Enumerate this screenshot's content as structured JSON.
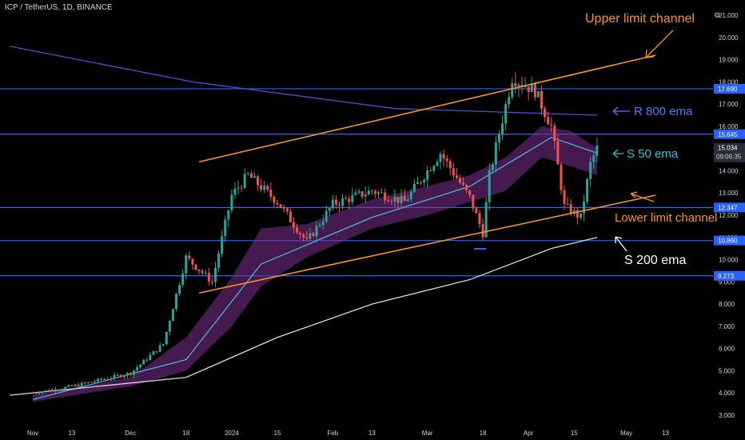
{
  "header": {
    "symbol_label": "ICP / TetherUS, 1D, BINANCE"
  },
  "chart_data": {
    "type": "candlestick",
    "title": "ICP / TetherUS, 1D, BINANCE",
    "y_axis": {
      "ticks": [
        "21.000",
        "20.000",
        "19.000",
        "18.000",
        "17.000",
        "16.000",
        "15.000",
        "14.000",
        "13.000",
        "12.000",
        "11.000",
        "10.000",
        "9.000",
        "8.000",
        "7.000",
        "6.000",
        "5.000",
        "4.000",
        "3.000"
      ],
      "range": [
        3,
        21
      ]
    },
    "x_axis": {
      "ticks": [
        "Nov",
        "13",
        "Dec",
        "18",
        "2024",
        "15",
        "Feb",
        "13",
        "Mar",
        "18",
        "Apr",
        "15",
        "May",
        "13"
      ]
    },
    "horizontal_levels": [
      {
        "label": "17.690",
        "value": 17.69
      },
      {
        "label": "15.645",
        "value": 15.645
      },
      {
        "label": "12.347",
        "value": 12.347
      },
      {
        "label": "10.860",
        "value": 10.86
      },
      {
        "label": "9.273",
        "value": 9.273
      }
    ],
    "current_price": {
      "label": "15.034",
      "value": 15.034,
      "countdown": "09:06:35"
    },
    "annotations": [
      {
        "text": "Upper limit channel",
        "color": "#f7941d"
      },
      {
        "text": "R 800 ema",
        "color": "#4f7bff"
      },
      {
        "text": "S 50 ema",
        "color": "#26c6da"
      },
      {
        "text": "Lower limit channel",
        "color": "#f7941d"
      },
      {
        "text": "S 200 ema",
        "color": "#ffffff"
      }
    ],
    "channel_lines": [
      {
        "name": "upper",
        "from": [
          "Dec 22",
          14.4
        ],
        "to": [
          "May 10",
          19.2
        ]
      },
      {
        "name": "lower",
        "from": [
          "Dec 22",
          8.5
        ],
        "to": [
          "May 10",
          12.9
        ]
      }
    ],
    "ohlc_sampled": [
      {
        "date": "Nov 1",
        "close": 4.0
      },
      {
        "date": "Nov 13",
        "close": 4.3
      },
      {
        "date": "Dec 1",
        "close": 4.9
      },
      {
        "date": "Dec 11",
        "close": 6.2
      },
      {
        "date": "Dec 18",
        "close": 10.1
      },
      {
        "date": "Dec 26",
        "close": 9.0
      },
      {
        "date": "Jan 1",
        "close": 12.9
      },
      {
        "date": "Jan 6",
        "close": 13.8
      },
      {
        "date": "Jan 15",
        "close": 12.6
      },
      {
        "date": "Jan 24",
        "close": 10.8
      },
      {
        "date": "Feb 1",
        "close": 12.5
      },
      {
        "date": "Feb 13",
        "close": 13.1
      },
      {
        "date": "Feb 23",
        "close": 12.6
      },
      {
        "date": "Mar 1",
        "close": 14.0
      },
      {
        "date": "Mar 5",
        "close": 14.8
      },
      {
        "date": "Mar 14",
        "close": 12.8
      },
      {
        "date": "Mar 18",
        "close": 11.2
      },
      {
        "date": "Mar 20",
        "close": 13.8
      },
      {
        "date": "Mar 27",
        "close": 18.2
      },
      {
        "date": "Apr 3",
        "close": 17.6
      },
      {
        "date": "Apr 8",
        "close": 16.0
      },
      {
        "date": "Apr 12",
        "close": 12.4
      },
      {
        "date": "Apr 17",
        "close": 11.9
      },
      {
        "date": "Apr 20",
        "close": 14.3
      },
      {
        "date": "Apr 22",
        "close": 15.0
      }
    ],
    "ema_lines": [
      {
        "name": "R 800 ema",
        "color": "#4f4fcf",
        "points": [
          [
            "Oct 25",
            19.6
          ],
          [
            "Dec 20",
            18.0
          ],
          [
            "Feb 20",
            16.8
          ],
          [
            "Apr 22",
            16.5
          ]
        ]
      },
      {
        "name": "S 50 ema",
        "color": "#4fb0d8",
        "points": [
          [
            "Nov 1",
            3.7
          ],
          [
            "Dec 18",
            5.5
          ],
          [
            "Jan 10",
            9.8
          ],
          [
            "Feb 13",
            11.9
          ],
          [
            "Mar 14",
            13.3
          ],
          [
            "Apr 8",
            15.5
          ],
          [
            "Apr 22",
            14.8
          ]
        ]
      },
      {
        "name": "S 200 ema",
        "color": "#d9d9d9",
        "points": [
          [
            "Oct 25",
            3.9
          ],
          [
            "Dec 18",
            4.7
          ],
          [
            "Jan 15",
            6.5
          ],
          [
            "Feb 13",
            8.0
          ],
          [
            "Mar 14",
            9.1
          ],
          [
            "Apr 8",
            10.5
          ],
          [
            "Apr 22",
            11.0
          ]
        ]
      }
    ],
    "grid": false,
    "colors": {
      "up": "#26a69a",
      "down": "#ef5350",
      "level_line": "#2962ff",
      "channel": "#f7941d",
      "ribbon": "#7b2f8f"
    }
  }
}
